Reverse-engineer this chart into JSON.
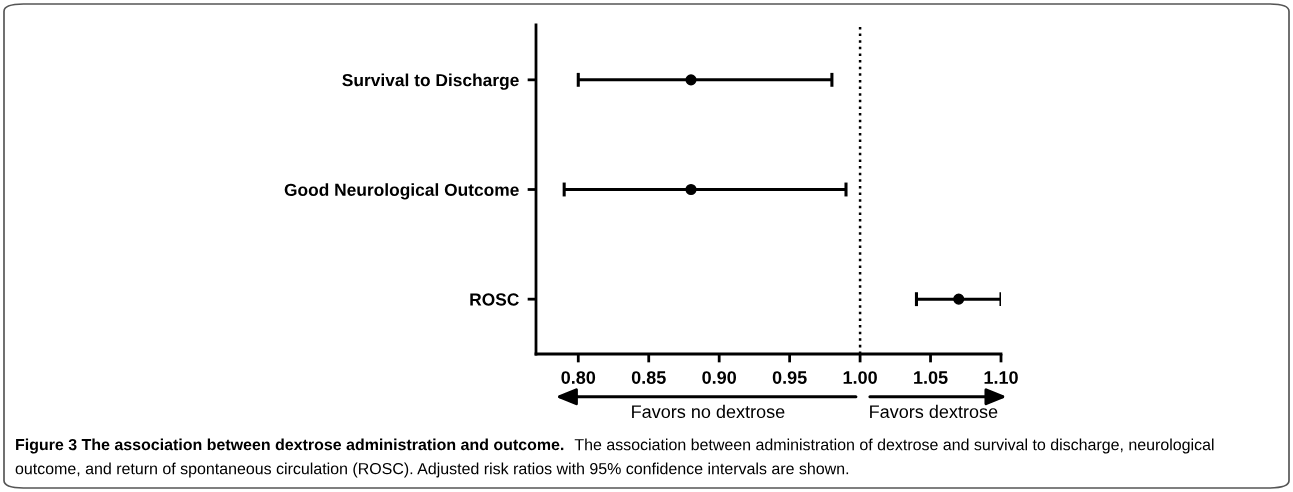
{
  "chart_data": {
    "type": "scatter",
    "orientation": "horizontal",
    "title": "Figure 3 The association between dextrose administration and outcome.",
    "categories": [
      "Survival to Discharge",
      "Good Neurological Outcome",
      "ROSC"
    ],
    "values": [
      0.88,
      0.88,
      1.07
    ],
    "errors": [
      [
        0.8,
        0.98
      ],
      [
        0.79,
        0.99
      ],
      [
        1.04,
        1.1
      ]
    ],
    "color": "#000000",
    "marker": "circle",
    "xlim": [
      0.77,
      1.1
    ],
    "xticks": [
      {
        "value": 0.8,
        "label": "0.80"
      },
      {
        "value": 0.85,
        "label": "0.85"
      },
      {
        "value": 0.9,
        "label": "0.90"
      },
      {
        "value": 0.95,
        "label": "0.95"
      },
      {
        "value": 1.0,
        "label": "1.00"
      },
      {
        "value": 1.05,
        "label": "1.05"
      },
      {
        "value": 1.1,
        "label": "1.10"
      }
    ],
    "ref_lines": [
      {
        "axis": "x",
        "value": 1.0,
        "line_style": "dotted",
        "color": "#000000"
      }
    ],
    "annotations": [
      "Favors no dextrose",
      "Favors dextrose",
      "The association between administration of dextrose and survival to discharge, neurological outcome, and return of spontaneous circulation (ROSC). Adjusted risk ratios with 95% confidence intervals are shown."
    ]
  }
}
